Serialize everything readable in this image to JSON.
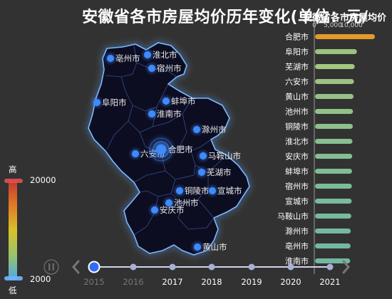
{
  "chart_data": {
    "type": "bar",
    "title": "安徽省各市房屋均价历年变化(单位：元/",
    "overlay_text": "安徽省各市房屋均价",
    "x_ticks": [
      "0",
      "5,000",
      "10,000"
    ],
    "categories": [
      "合肥市",
      "阜阳市",
      "芜湖市",
      "六安市",
      "黄山市",
      "池州市",
      "铜陵市",
      "淮北市",
      "安庆市",
      "蚌埠市",
      "宿州市",
      "宣城市",
      "马鞍山市",
      "滁州市",
      "亳州市",
      "淮南市"
    ],
    "values": [
      16000,
      11200,
      10600,
      10400,
      10300,
      10150,
      10100,
      10000,
      9950,
      9900,
      9850,
      9800,
      9700,
      9550,
      9500,
      9400
    ],
    "xlim": [
      0,
      16000
    ],
    "bar_colors": [
      "#e39a2a",
      "#9dc27b",
      "#a4c77c",
      "#9dc383",
      "#95c286",
      "#90c189",
      "#8dc08d",
      "#88bf90",
      "#84be93",
      "#80bd96",
      "#7cbc99",
      "#79bb9b",
      "#77ba9e",
      "#75b9a0",
      "#73b8a2",
      "#71b7a4"
    ],
    "current_year": "2015",
    "visual_map": {
      "max_label": "20000",
      "min_label": "2000",
      "high_label": "高",
      "low_label": "低"
    },
    "map_cities": [
      {
        "name": "亳州市",
        "value": 9500
      },
      {
        "name": "淮北市",
        "value": 10000
      },
      {
        "name": "宿州市",
        "value": 9850
      },
      {
        "name": "阜阳市",
        "value": 11200
      },
      {
        "name": "蚌埠市",
        "value": 9900
      },
      {
        "name": "淮南市",
        "value": 9400
      },
      {
        "name": "滁州市",
        "value": 9550
      },
      {
        "name": "六安市",
        "value": 10400
      },
      {
        "name": "合肥市",
        "value": 16000
      },
      {
        "name": "马鞍山市",
        "value": 9700
      },
      {
        "name": "芜湖市",
        "value": 10600
      },
      {
        "name": "铜陵市",
        "value": 10100
      },
      {
        "name": "宣城市",
        "value": 9800
      },
      {
        "name": "池州市",
        "value": 10150
      },
      {
        "name": "安庆市",
        "value": 9950
      },
      {
        "name": "黄山市",
        "value": 10300
      }
    ]
  },
  "timeline": {
    "years": [
      "2015",
      "2016",
      "2017",
      "2018",
      "2019",
      "2020",
      "2021"
    ],
    "active_index": 0,
    "prev_icon": "chevron-left-icon",
    "next_icon": "chevron-right-icon",
    "play_icon": "pause-icon"
  },
  "colors": {
    "background": "#323232",
    "map_fill": "#0b0f22",
    "map_glow": "#5aa8ff",
    "point": "#3d8bff",
    "axis_line": "#9a9a9a"
  }
}
